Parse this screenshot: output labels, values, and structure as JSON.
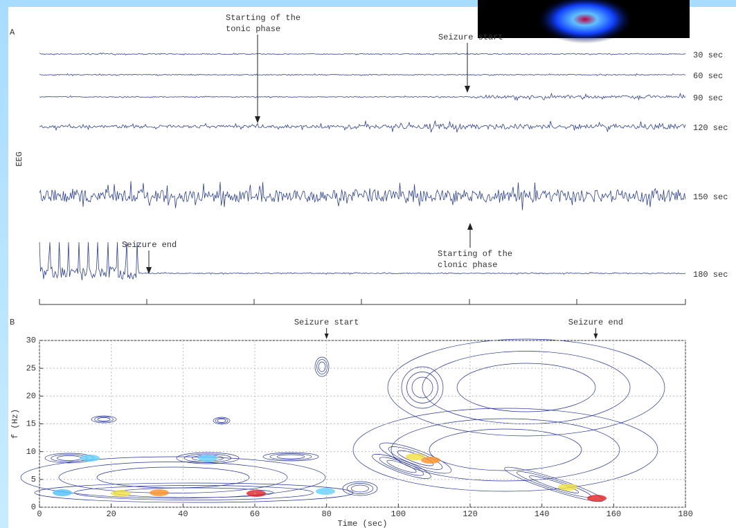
{
  "panel_a": {
    "label": "A",
    "y_label": "EEG",
    "traces": [
      "30 sec",
      "60 sec",
      "90 sec",
      "120 sec",
      "150 sec",
      "180 sec"
    ],
    "tonic_start": [
      "Starting of the",
      "tonic phase"
    ],
    "seizure_start": "Seizure start",
    "seizure_end": "Seizure end",
    "clonic_start": [
      "Starting of the",
      "clonic phase"
    ]
  },
  "chart_data": {
    "type": "contour",
    "label": "B",
    "xlabel": "Time (sec)",
    "ylabel": "f (Hz)",
    "xlim": [
      0,
      180
    ],
    "ylim": [
      0,
      30
    ],
    "xticks": [
      0,
      20,
      40,
      60,
      80,
      100,
      120,
      140,
      160,
      180
    ],
    "yticks": [
      0,
      5,
      10,
      15,
      20,
      25,
      30
    ],
    "grid": true,
    "annotations": [
      {
        "text": "Seizure start",
        "x": 80
      },
      {
        "text": "Seizure end",
        "x": 155
      }
    ]
  }
}
